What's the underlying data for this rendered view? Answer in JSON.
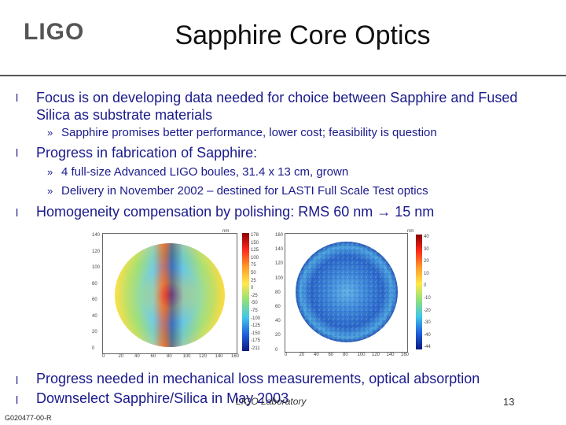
{
  "header": {
    "logo": "LIGO",
    "title": "Sapphire Core Optics"
  },
  "bullets": [
    {
      "text": "Focus is on developing data needed for choice between Sapphire and Fused Silica as substrate materials",
      "subs": [
        "Sapphire promises better performance, lower cost; feasibility is question"
      ]
    },
    {
      "text": "Progress in fabrication of Sapphire:",
      "subs": [
        "4 full-size Advanced LIGO boules, 31.4 x 13 cm, grown",
        "Delivery in November 2002 – destined for LASTI Full Scale Test optics"
      ]
    },
    {
      "text": "Homogeneity compensation by polishing: RMS 60 nm → 15 nm",
      "subs": []
    },
    {
      "text": "Progress needed in mechanical loss measurements, optical absorption",
      "subs": []
    },
    {
      "text": "Downselect Sapphire/Silica in May 2003",
      "subs": []
    }
  ],
  "symbols": {
    "bullet": "l",
    "sub": "»"
  },
  "plot_left": {
    "y_ticks": [
      "140",
      "120",
      "100",
      "80",
      "60",
      "40",
      "20",
      "0"
    ],
    "x_ticks": [
      "0",
      "20",
      "40",
      "60",
      "80",
      "100",
      "120",
      "140",
      "160"
    ],
    "unit": "nm",
    "cbar_ticks": [
      "178",
      "150",
      "125",
      "100",
      "75",
      "50",
      "25",
      "0",
      "-25",
      "-50",
      "-75",
      "-100",
      "-125",
      "-150",
      "-175",
      "-211"
    ]
  },
  "plot_right": {
    "y_ticks": [
      "160",
      "140",
      "120",
      "100",
      "80",
      "60",
      "40",
      "20",
      "0"
    ],
    "x_ticks": [
      "0",
      "20",
      "40",
      "60",
      "80",
      "100",
      "120",
      "140",
      "160"
    ],
    "unit": "nm",
    "cbar_ticks": [
      "40",
      "30",
      "20",
      "10",
      "0",
      "-10",
      "-20",
      "-30",
      "-40",
      "-44"
    ]
  },
  "colors": {
    "accent": "#1a1a8c",
    "rule": "#555555"
  },
  "footer": {
    "center": "LIGO Laboratory",
    "page": "13",
    "doc_id": "G020477-00-R"
  }
}
